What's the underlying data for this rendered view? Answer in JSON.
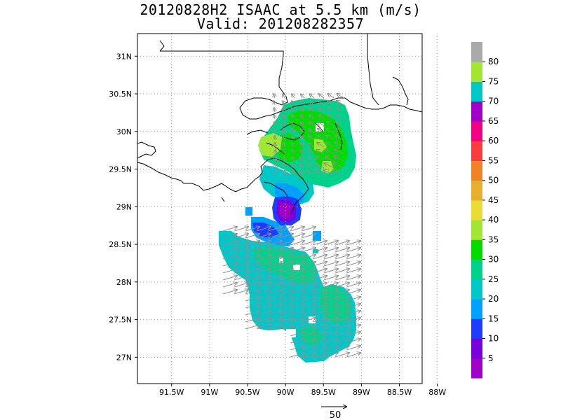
{
  "title": {
    "line1": "20120828H2 ISAAC at 5.5 km (m/s)",
    "line2": "Valid: 201208282357"
  },
  "map": {
    "lat_labels": [
      "31N",
      "30.5N",
      "30N",
      "29.5N",
      "29N",
      "28.5N",
      "28N",
      "27.5N",
      "27N"
    ],
    "lat_values": [
      31,
      30.5,
      30,
      29.5,
      29,
      28.5,
      28,
      27.5,
      27
    ],
    "lon_labels": [
      "91.5W",
      "91W",
      "90.5W",
      "90W",
      "89.5W",
      "89W",
      "88.5W",
      "88W"
    ],
    "lon_values": [
      -91.5,
      -91,
      -90.5,
      -90,
      -89.5,
      -89,
      -88.5,
      -88
    ],
    "lat_range": [
      26.65,
      31.3
    ],
    "lon_range": [
      -91.95,
      -88.2
    ],
    "grid": true,
    "background": "#ffffff"
  },
  "colorbar": {
    "labels": [
      "5",
      "10",
      "15",
      "20",
      "25",
      "30",
      "35",
      "40",
      "45",
      "50",
      "55",
      "60",
      "65",
      "70",
      "75",
      "80"
    ],
    "colors": [
      "#a000c8",
      "#7800dc",
      "#1e3cff",
      "#00a0ff",
      "#00c8c8",
      "#00d28c",
      "#00dc00",
      "#a0e632",
      "#e6dc32",
      "#e6af2d",
      "#f08228",
      "#fa3c3c",
      "#f00082",
      "#a000c8",
      "#00c8c8",
      "#a0e632",
      "#aaaaaa"
    ]
  },
  "vector_key": {
    "label": "50"
  }
}
